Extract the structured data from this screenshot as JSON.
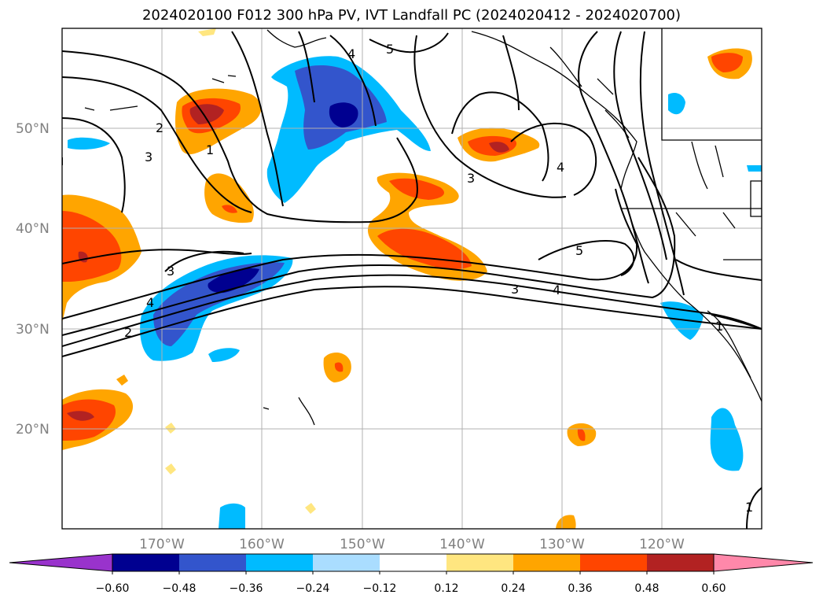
{
  "title": "2024020100 F012 300 hPa PV, IVT Landfall PC (2024020412 - 2024020700)",
  "lat_labels": [
    "50°N",
    "40°N",
    "30°N",
    "20°N"
  ],
  "lon_labels": [
    "170°W",
    "160°W",
    "150°W",
    "140°W",
    "130°W",
    "120°W"
  ],
  "contour_labels": [
    "5",
    "4",
    "2",
    "3",
    "1",
    "3",
    "4",
    "5",
    "3",
    "4",
    "3",
    "4",
    "2",
    "1",
    "1"
  ],
  "colorbar": {
    "colors": [
      "#9933cc",
      "#000090",
      "#3355cc",
      "#00bbff",
      "#aaddff",
      "#ffffff",
      "#ffe680",
      "#ffa500",
      "#ff4500",
      "#b22222",
      "#ff88aa"
    ],
    "tick_labels": [
      "−0.60",
      "−0.48",
      "−0.36",
      "−0.24",
      "−0.12",
      "0.12",
      "0.24",
      "0.36",
      "0.48",
      "0.60"
    ]
  }
}
